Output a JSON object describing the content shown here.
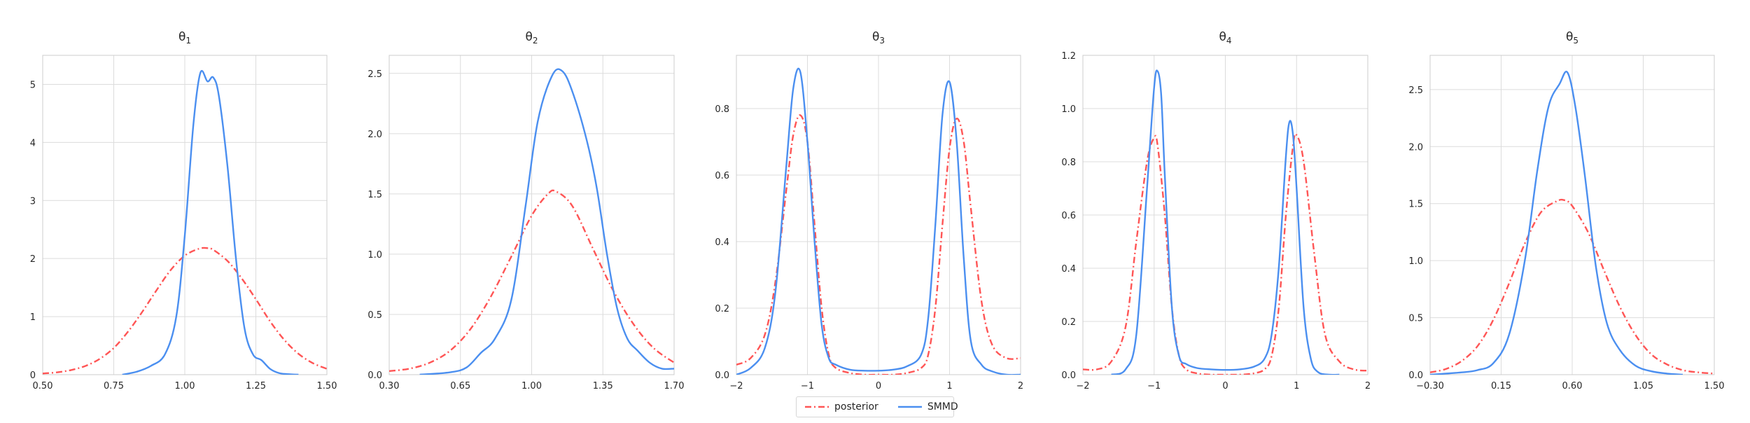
{
  "legend": {
    "posterior_label": "posterior",
    "smmd_label": "SMMD"
  },
  "colors": {
    "posterior": "#ff5555",
    "smmd": "#4b8ff0",
    "grid": "#dcdcdc",
    "axis": "#cccccc",
    "text": "#262626"
  },
  "chart_data": [
    {
      "type": "line",
      "title": "θ1",
      "title_base": "θ",
      "title_sub": "1",
      "xlim": [
        0.5,
        1.5
      ],
      "ylim": [
        0,
        5.5
      ],
      "xticks": [
        0.5,
        0.75,
        1.0,
        1.25,
        1.5
      ],
      "xtick_labels": [
        "0.50",
        "0.75",
        "1.00",
        "1.25",
        "1.50"
      ],
      "yticks": [
        0,
        1,
        2,
        3,
        4,
        5
      ],
      "ytick_labels": [
        "0",
        "1",
        "2",
        "3",
        "4",
        "5"
      ],
      "legend": "bottom-center",
      "grid": true,
      "series": [
        {
          "name": "posterior",
          "style": "dashdot",
          "x": [
            0.5,
            0.55,
            0.6,
            0.65,
            0.7,
            0.75,
            0.8,
            0.85,
            0.9,
            0.95,
            1.0,
            1.05,
            1.08,
            1.1,
            1.15,
            1.2,
            1.25,
            1.3,
            1.35,
            1.4,
            1.45,
            1.5
          ],
          "y": [
            0.02,
            0.04,
            0.08,
            0.15,
            0.27,
            0.46,
            0.74,
            1.08,
            1.45,
            1.8,
            2.05,
            2.17,
            2.18,
            2.15,
            1.96,
            1.66,
            1.3,
            0.92,
            0.6,
            0.36,
            0.2,
            0.1
          ]
        },
        {
          "name": "SMMD",
          "style": "solid",
          "x": [
            0.78,
            0.83,
            0.88,
            0.93,
            0.97,
            1.0,
            1.03,
            1.055,
            1.08,
            1.1,
            1.12,
            1.15,
            1.18,
            1.21,
            1.24,
            1.27,
            1.3,
            1.33,
            1.36,
            1.4
          ],
          "y": [
            0.0,
            0.05,
            0.15,
            0.35,
            1.0,
            2.4,
            4.3,
            5.2,
            5.05,
            5.12,
            4.8,
            3.6,
            2.0,
            0.8,
            0.35,
            0.25,
            0.1,
            0.03,
            0.01,
            0.0
          ]
        }
      ]
    },
    {
      "type": "line",
      "title": "θ2",
      "title_base": "θ",
      "title_sub": "2",
      "xlim": [
        0.3,
        1.7
      ],
      "ylim": [
        0,
        2.65
      ],
      "xticks": [
        0.3,
        0.65,
        1.0,
        1.35,
        1.7
      ],
      "xtick_labels": [
        "0.30",
        "0.65",
        "1.00",
        "1.35",
        "1.70"
      ],
      "yticks": [
        0,
        0.5,
        1.0,
        1.5,
        2.0,
        2.5
      ],
      "ytick_labels": [
        "0.0",
        "0.5",
        "1.0",
        "1.5",
        "2.0",
        "2.5"
      ],
      "legend": "bottom-center",
      "grid": true,
      "series": [
        {
          "name": "posterior",
          "style": "dashdot",
          "x": [
            0.3,
            0.4,
            0.5,
            0.6,
            0.7,
            0.8,
            0.9,
            1.0,
            1.08,
            1.12,
            1.2,
            1.3,
            1.4,
            1.5,
            1.6,
            1.7
          ],
          "y": [
            0.03,
            0.05,
            0.1,
            0.2,
            0.38,
            0.65,
            0.98,
            1.32,
            1.5,
            1.52,
            1.4,
            1.05,
            0.7,
            0.42,
            0.22,
            0.1
          ]
        },
        {
          "name": "SMMD",
          "style": "solid",
          "x": [
            0.45,
            0.6,
            0.68,
            0.75,
            0.82,
            0.9,
            0.97,
            1.03,
            1.1,
            1.15,
            1.2,
            1.27,
            1.32,
            1.37,
            1.42,
            1.47,
            1.52,
            1.58,
            1.64,
            1.7
          ],
          "y": [
            0.0,
            0.02,
            0.06,
            0.18,
            0.3,
            0.62,
            1.4,
            2.1,
            2.48,
            2.52,
            2.35,
            1.95,
            1.55,
            1.0,
            0.55,
            0.3,
            0.2,
            0.1,
            0.05,
            0.05
          ]
        }
      ]
    },
    {
      "type": "line",
      "title": "θ3",
      "title_base": "θ",
      "title_sub": "3",
      "xlim": [
        -2,
        2
      ],
      "ylim": [
        0,
        0.96
      ],
      "xticks": [
        -2,
        -1,
        0,
        1,
        2
      ],
      "xtick_labels": [
        "−2",
        "−1",
        "0",
        "1",
        "2"
      ],
      "yticks": [
        0,
        0.2,
        0.4,
        0.6,
        0.8
      ],
      "ytick_labels": [
        "0.0",
        "0.2",
        "0.4",
        "0.6",
        "0.8"
      ],
      "legend": "bottom-center",
      "grid": true,
      "series": [
        {
          "name": "posterior",
          "style": "dashdot",
          "x": [
            -2.0,
            -1.8,
            -1.6,
            -1.45,
            -1.3,
            -1.2,
            -1.1,
            -1.0,
            -0.9,
            -0.8,
            -0.7,
            -0.6,
            -0.4,
            -0.2,
            0.0,
            0.2,
            0.4,
            0.6,
            0.7,
            0.8,
            0.9,
            1.0,
            1.1,
            1.2,
            1.3,
            1.45,
            1.6,
            1.8,
            2.0
          ],
          "y": [
            0.03,
            0.05,
            0.12,
            0.28,
            0.55,
            0.72,
            0.78,
            0.7,
            0.45,
            0.2,
            0.06,
            0.02,
            0.005,
            0.0,
            0.0,
            0.0,
            0.005,
            0.02,
            0.06,
            0.2,
            0.45,
            0.68,
            0.77,
            0.7,
            0.5,
            0.22,
            0.09,
            0.05,
            0.05
          ]
        },
        {
          "name": "SMMD",
          "style": "solid",
          "x": [
            -2.0,
            -1.8,
            -1.6,
            -1.45,
            -1.3,
            -1.2,
            -1.1,
            -1.0,
            -0.9,
            -0.8,
            -0.7,
            -0.6,
            -0.4,
            -0.2,
            0.0,
            0.2,
            0.4,
            0.6,
            0.7,
            0.8,
            0.9,
            1.0,
            1.1,
            1.2,
            1.3,
            1.45,
            1.6,
            1.8,
            2.0
          ],
          "y": [
            0.0,
            0.02,
            0.08,
            0.25,
            0.62,
            0.86,
            0.91,
            0.7,
            0.4,
            0.15,
            0.05,
            0.03,
            0.015,
            0.012,
            0.012,
            0.015,
            0.025,
            0.06,
            0.17,
            0.45,
            0.78,
            0.88,
            0.7,
            0.35,
            0.1,
            0.03,
            0.01,
            0.0,
            0.0
          ]
        }
      ]
    },
    {
      "type": "line",
      "title": "θ4",
      "title_base": "θ",
      "title_sub": "4",
      "xlim": [
        -2,
        2
      ],
      "ylim": [
        0,
        1.2
      ],
      "xticks": [
        -2,
        -1,
        0,
        1,
        2
      ],
      "xtick_labels": [
        "−2",
        "−1",
        "0",
        "1",
        "2"
      ],
      "yticks": [
        0,
        0.2,
        0.4,
        0.6,
        0.8,
        1.0,
        1.2
      ],
      "ytick_labels": [
        "0.0",
        "0.2",
        "0.4",
        "0.6",
        "0.8",
        "1.0",
        "1.2"
      ],
      "legend": "bottom-center",
      "grid": true,
      "series": [
        {
          "name": "posterior",
          "style": "dashdot",
          "x": [
            -2.0,
            -1.8,
            -1.6,
            -1.4,
            -1.25,
            -1.1,
            -1.0,
            -0.95,
            -0.85,
            -0.75,
            -0.65,
            -0.55,
            -0.4,
            -0.2,
            0.0,
            0.2,
            0.4,
            0.55,
            0.65,
            0.75,
            0.85,
            0.95,
            1.0,
            1.1,
            1.25,
            1.4,
            1.6,
            1.8,
            2.0
          ],
          "y": [
            0.02,
            0.02,
            0.05,
            0.18,
            0.5,
            0.8,
            0.89,
            0.86,
            0.6,
            0.25,
            0.07,
            0.02,
            0.005,
            0.0,
            0.0,
            0.0,
            0.005,
            0.02,
            0.07,
            0.25,
            0.6,
            0.86,
            0.9,
            0.8,
            0.45,
            0.15,
            0.05,
            0.02,
            0.015
          ]
        },
        {
          "name": "SMMD",
          "style": "solid",
          "x": [
            -1.6,
            -1.4,
            -1.25,
            -1.1,
            -1.0,
            -0.95,
            -0.9,
            -0.85,
            -0.75,
            -0.65,
            -0.55,
            -0.4,
            -0.2,
            0.0,
            0.2,
            0.4,
            0.55,
            0.65,
            0.75,
            0.85,
            0.9,
            0.95,
            1.0,
            1.1,
            1.2,
            1.3,
            1.45,
            1.6
          ],
          "y": [
            0.0,
            0.02,
            0.15,
            0.7,
            1.08,
            1.14,
            1.05,
            0.75,
            0.25,
            0.07,
            0.04,
            0.025,
            0.02,
            0.018,
            0.02,
            0.03,
            0.06,
            0.15,
            0.4,
            0.82,
            0.95,
            0.9,
            0.7,
            0.25,
            0.06,
            0.01,
            0.0,
            0.0
          ]
        }
      ]
    },
    {
      "type": "line",
      "title": "θ5",
      "title_base": "θ",
      "title_sub": "5",
      "xlim": [
        -0.3,
        1.5
      ],
      "ylim": [
        0,
        2.8
      ],
      "xticks": [
        -0.3,
        0.15,
        0.6,
        1.05,
        1.5
      ],
      "xtick_labels": [
        "−0.30",
        "0.15",
        "0.60",
        "1.05",
        "1.50"
      ],
      "yticks": [
        0,
        0.5,
        1.0,
        1.5,
        2.0,
        2.5
      ],
      "ytick_labels": [
        "0.0",
        "0.5",
        "1.0",
        "1.5",
        "2.0",
        "2.5"
      ],
      "legend": "bottom-center",
      "grid": true,
      "series": [
        {
          "name": "posterior",
          "style": "dashdot",
          "x": [
            -0.3,
            -0.2,
            -0.1,
            0.0,
            0.1,
            0.2,
            0.3,
            0.4,
            0.5,
            0.55,
            0.6,
            0.7,
            0.8,
            0.9,
            1.0,
            1.1,
            1.2,
            1.3,
            1.4,
            1.5
          ],
          "y": [
            0.02,
            0.05,
            0.12,
            0.25,
            0.48,
            0.8,
            1.15,
            1.42,
            1.52,
            1.53,
            1.48,
            1.25,
            0.92,
            0.6,
            0.35,
            0.18,
            0.09,
            0.04,
            0.02,
            0.01
          ]
        },
        {
          "name": "SMMD",
          "style": "solid",
          "x": [
            -0.3,
            -0.1,
            0.0,
            0.1,
            0.2,
            0.3,
            0.38,
            0.45,
            0.52,
            0.57,
            0.62,
            0.68,
            0.75,
            0.82,
            0.9,
            1.0,
            1.1,
            1.2,
            1.3
          ],
          "y": [
            0.0,
            0.02,
            0.04,
            0.1,
            0.35,
            1.0,
            1.8,
            2.35,
            2.55,
            2.65,
            2.35,
            1.75,
            0.95,
            0.45,
            0.22,
            0.08,
            0.03,
            0.01,
            0.0
          ]
        }
      ]
    }
  ]
}
